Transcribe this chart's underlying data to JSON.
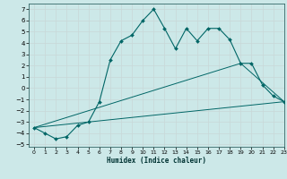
{
  "xlabel": "Humidex (Indice chaleur)",
  "background_color": "#cce8e8",
  "grid_color": "#aacccc",
  "line_color": "#006666",
  "xlim": [
    -0.5,
    23
  ],
  "ylim": [
    -5.2,
    7.5
  ],
  "xticks": [
    0,
    1,
    2,
    3,
    4,
    5,
    6,
    7,
    8,
    9,
    10,
    11,
    12,
    13,
    14,
    15,
    16,
    17,
    18,
    19,
    20,
    21,
    22,
    23
  ],
  "yticks": [
    -5,
    -4,
    -3,
    -2,
    -1,
    0,
    1,
    2,
    3,
    4,
    5,
    6,
    7
  ],
  "series1_x": [
    0,
    1,
    2,
    3,
    4,
    5,
    6,
    7,
    8,
    9,
    10,
    11,
    12,
    13,
    14,
    15,
    16,
    17,
    18,
    19,
    20,
    21,
    22,
    23
  ],
  "series1_y": [
    -3.5,
    -4.0,
    -4.5,
    -4.3,
    -3.3,
    -3.0,
    -1.2,
    2.5,
    4.2,
    4.7,
    6.0,
    7.0,
    5.3,
    3.5,
    5.3,
    4.2,
    5.3,
    5.3,
    4.3,
    2.2,
    2.2,
    0.3,
    -0.7,
    -1.2
  ],
  "series2_x": [
    0,
    23
  ],
  "series2_y": [
    -3.5,
    -1.2
  ],
  "series3_x": [
    0,
    19,
    23
  ],
  "series3_y": [
    -3.5,
    2.2,
    -1.2
  ]
}
